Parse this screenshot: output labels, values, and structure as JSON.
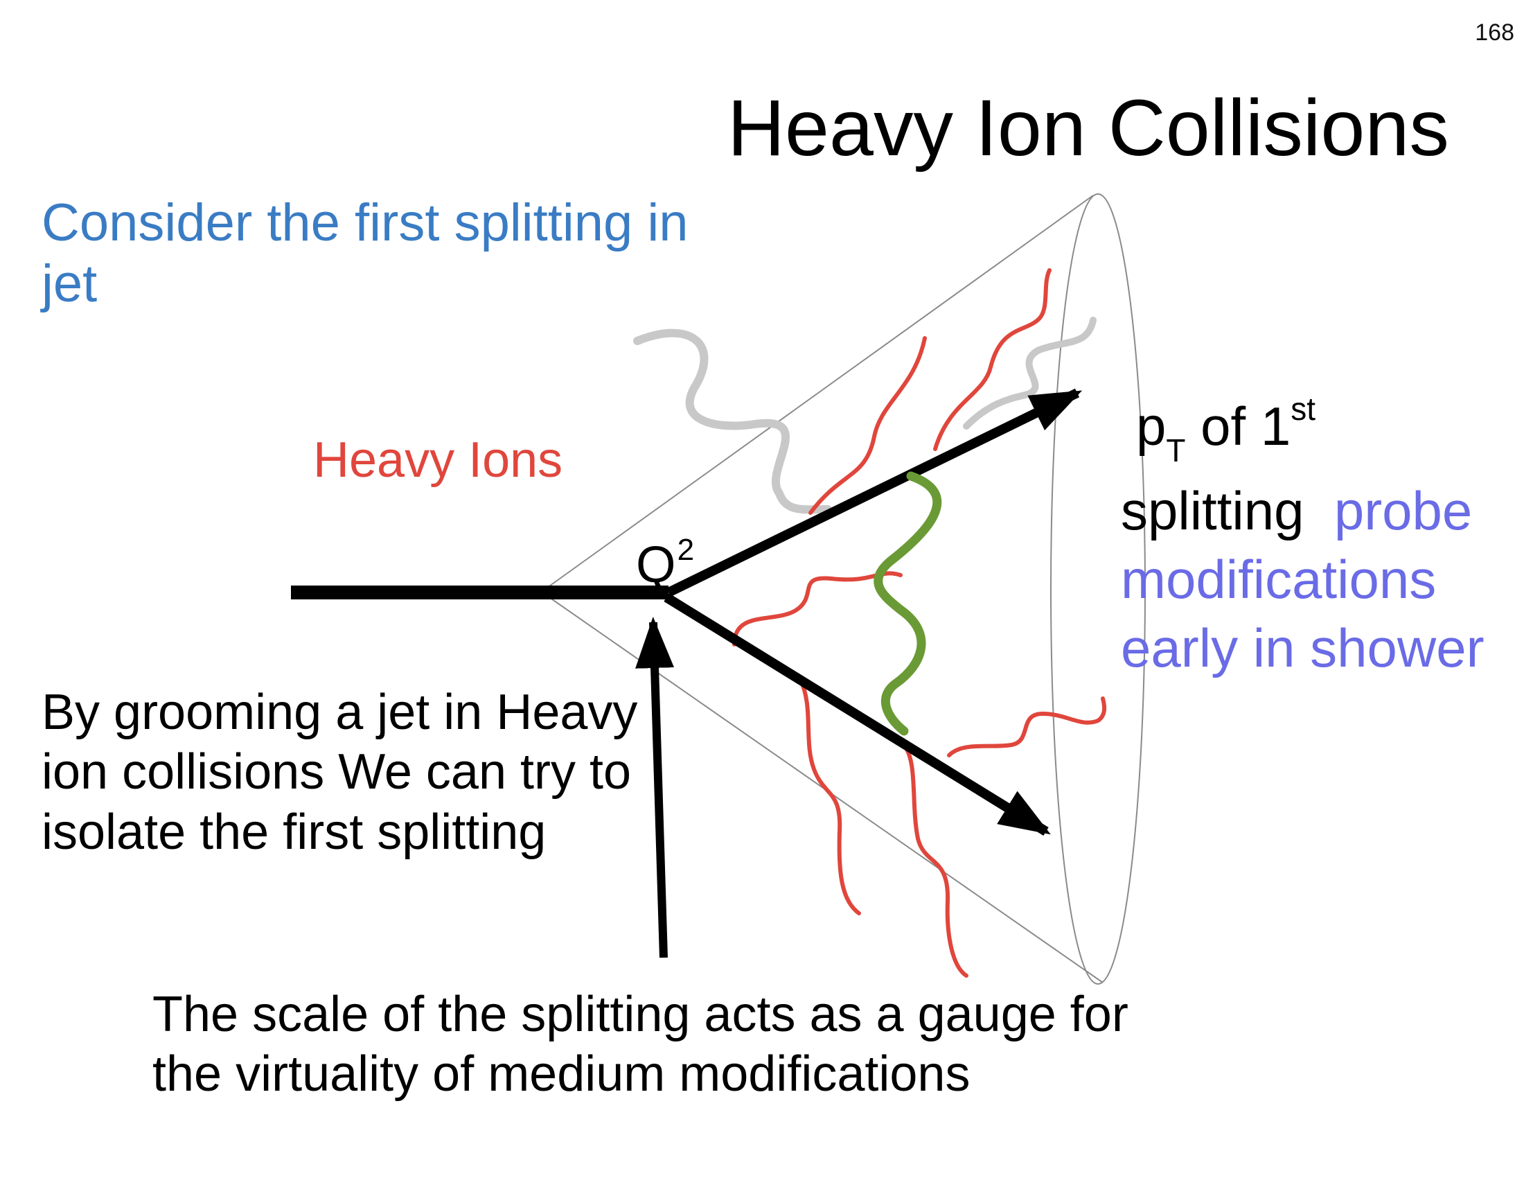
{
  "slide": {
    "page_number": "168",
    "title": "Heavy Ion Collisions"
  },
  "texts": {
    "intro": "Consider the first splitting in jet",
    "heavy_ions": "Heavy Ions",
    "q_symbol": "Q",
    "q_superscript": "2",
    "grooming": "By grooming a jet in Heavy ion collisions We can try to isolate the first splitting",
    "scale": "The scale of the splitting acts as a gauge for the virtuality of medium modifications"
  },
  "pt_annotation": {
    "p": "p",
    "subscript": "T",
    "of": " of  1",
    "superscript": "st",
    "splitting": "splitting",
    "probe": "probe",
    "modifications": "modifications",
    "early": "early in shower"
  },
  "colors": {
    "intro_blue": "#3a7cc4",
    "heavy_ions_red": "#e0463c",
    "probe_violet": "#6a6be6",
    "gluon_green": "#6a9a35",
    "gluon_gray": "#c8c8c8",
    "cone_gray": "#8a8a8a"
  }
}
